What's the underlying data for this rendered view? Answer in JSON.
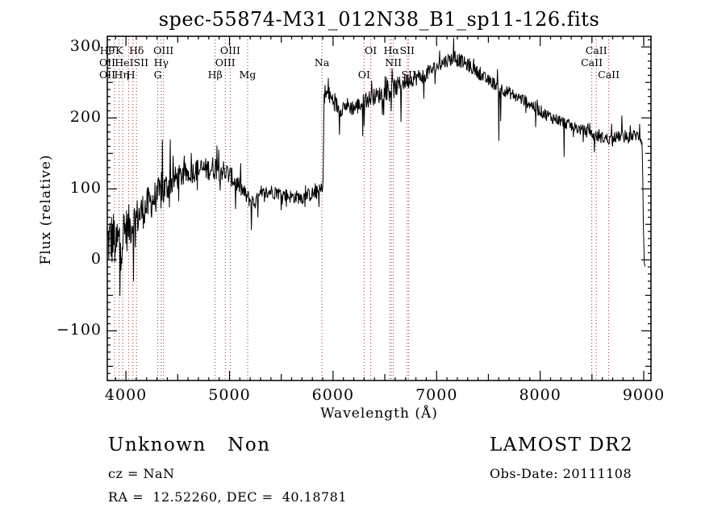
{
  "title": "spec-55874-M31_012N38_B1_sp11-126.fits",
  "footer": {
    "class_label": "Unknown   Non",
    "survey": "LAMOST DR2",
    "cz": "cz = NaN",
    "obs_date": "Obs-Date: 20111108",
    "radec": "RA =  12.52260, DEC =  40.18781"
  },
  "colors": {
    "background": "#ffffff",
    "spectrum": "#000000",
    "frame": "#000000",
    "marker_line": "#9b3028",
    "text": "#000000"
  },
  "chart_data": {
    "type": "line",
    "title": "spec-55874-M31_012N38_B1_sp11-126.fits",
    "xlabel": "Wavelength (Å)",
    "ylabel": "Flux (relative)",
    "xlim": [
      3820,
      9070
    ],
    "ylim": [
      -170,
      315
    ],
    "grid": false,
    "x_ticks_labeled": [
      4000,
      5000,
      6000,
      7000,
      8000,
      9000
    ],
    "x_minor_step": 100,
    "x_medium_step": 500,
    "y_ticks_labeled": [
      -100,
      0,
      100,
      200,
      300
    ],
    "y_minor_step": 10,
    "y_medium_step": 50,
    "marker_wavelengths": [
      3889,
      3934,
      3969,
      4026,
      4068,
      4102,
      4308,
      4340,
      4363,
      4861,
      4959,
      5007,
      5175,
      5893,
      6300,
      6364,
      6548,
      6563,
      6583,
      6716,
      6731,
      8498,
      8542,
      8662
    ],
    "spectral_lines": [
      {
        "label": "Hθ",
        "wavelength": 3798,
        "row": 1
      },
      {
        "label": "K",
        "wavelength": 3934,
        "row": 1
      },
      {
        "label": "Hδ",
        "wavelength": 4102,
        "row": 1
      },
      {
        "label": "OIII",
        "wavelength": 4363,
        "row": 1
      },
      {
        "label": "OIII",
        "wavelength": 5007,
        "row": 1
      },
      {
        "label": "OI",
        "wavelength": 6364,
        "row": 1
      },
      {
        "label": "Hα",
        "wavelength": 6563,
        "row": 1
      },
      {
        "label": "SII",
        "wavelength": 6716,
        "row": 1
      },
      {
        "label": "CaII",
        "wavelength": 8542,
        "row": 1
      },
      {
        "label": "OII",
        "wavelength": 3727,
        "row": 2
      },
      {
        "label": "HeI",
        "wavelength": 3889,
        "row": 2
      },
      {
        "label": "SII",
        "wavelength": 4068,
        "row": 2
      },
      {
        "label": "Hγ",
        "wavelength": 4340,
        "row": 2
      },
      {
        "label": "OIII",
        "wavelength": 4959,
        "row": 2
      },
      {
        "label": "Na",
        "wavelength": 5893,
        "row": 2
      },
      {
        "label": "NII",
        "wavelength": 6583,
        "row": 2
      },
      {
        "label": "CaII",
        "wavelength": 8498,
        "row": 2
      },
      {
        "label": "OII",
        "wavelength": 3727,
        "row": 3
      },
      {
        "label": "Hη",
        "wavelength": 3835,
        "row": 3
      },
      {
        "label": "H",
        "wavelength": 3969,
        "row": 3
      },
      {
        "label": "G",
        "wavelength": 4308,
        "row": 3
      },
      {
        "label": "Hβ",
        "wavelength": 4861,
        "row": 3
      },
      {
        "label": "Mg",
        "wavelength": 5175,
        "row": 3
      },
      {
        "label": "OI",
        "wavelength": 6300,
        "row": 3
      },
      {
        "label": "SII",
        "wavelength": 6731,
        "row": 3
      },
      {
        "label": "CaII",
        "wavelength": 8662,
        "row": 3
      }
    ],
    "series": [
      {
        "name": "spectrum",
        "step": 4.5,
        "seed": 12345,
        "envelope": [
          [
            3820,
            25,
            70
          ],
          [
            3870,
            30,
            78
          ],
          [
            3920,
            22,
            80
          ],
          [
            3960,
            35,
            75
          ],
          [
            4000,
            42,
            60
          ],
          [
            4060,
            52,
            55
          ],
          [
            4120,
            62,
            50
          ],
          [
            4180,
            72,
            48
          ],
          [
            4240,
            82,
            46
          ],
          [
            4300,
            90,
            45
          ],
          [
            4360,
            96,
            48
          ],
          [
            4420,
            108,
            38
          ],
          [
            4500,
            116,
            32
          ],
          [
            4600,
            122,
            30
          ],
          [
            4700,
            127,
            30
          ],
          [
            4800,
            128,
            30
          ],
          [
            4880,
            131,
            34
          ],
          [
            4950,
            125,
            28
          ],
          [
            5010,
            118,
            26
          ],
          [
            5090,
            105,
            24
          ],
          [
            5170,
            88,
            22
          ],
          [
            5240,
            80,
            20
          ],
          [
            5320,
            92,
            20
          ],
          [
            5400,
            97,
            18
          ],
          [
            5500,
            93,
            18
          ],
          [
            5600,
            89,
            18
          ],
          [
            5700,
            88,
            18
          ],
          [
            5800,
            93,
            18
          ],
          [
            5870,
            96,
            20
          ],
          [
            5902,
            98,
            22
          ],
          [
            5914,
            235,
            26
          ],
          [
            5950,
            232,
            28
          ],
          [
            6000,
            225,
            24
          ],
          [
            6060,
            212,
            22
          ],
          [
            6120,
            218,
            22
          ],
          [
            6200,
            214,
            22
          ],
          [
            6280,
            220,
            24
          ],
          [
            6360,
            228,
            22
          ],
          [
            6440,
            232,
            22
          ],
          [
            6520,
            238,
            24
          ],
          [
            6600,
            242,
            26
          ],
          [
            6680,
            250,
            22
          ],
          [
            6760,
            255,
            20
          ],
          [
            6840,
            258,
            22
          ],
          [
            6920,
            264,
            20
          ],
          [
            7000,
            272,
            18
          ],
          [
            7080,
            280,
            18
          ],
          [
            7160,
            284,
            18
          ],
          [
            7240,
            280,
            18
          ],
          [
            7320,
            272,
            16
          ],
          [
            7400,
            264,
            16
          ],
          [
            7480,
            254,
            16
          ],
          [
            7560,
            248,
            16
          ],
          [
            7640,
            240,
            16
          ],
          [
            7720,
            234,
            16
          ],
          [
            7800,
            228,
            16
          ],
          [
            7880,
            222,
            16
          ],
          [
            7960,
            214,
            16
          ],
          [
            8040,
            206,
            16
          ],
          [
            8120,
            200,
            16
          ],
          [
            8200,
            196,
            15
          ],
          [
            8280,
            190,
            15
          ],
          [
            8360,
            185,
            15
          ],
          [
            8440,
            181,
            15
          ],
          [
            8520,
            175,
            15
          ],
          [
            8600,
            172,
            15
          ],
          [
            8680,
            170,
            15
          ],
          [
            8760,
            174,
            15
          ],
          [
            8840,
            172,
            15
          ],
          [
            8920,
            176,
            16
          ],
          [
            8970,
            172,
            16
          ],
          [
            8986,
            165,
            14
          ],
          [
            8996,
            60,
            18
          ],
          [
            9004,
            -6,
            6
          ],
          [
            9018,
            -9,
            4
          ]
        ],
        "spikes": [
          [
            3900,
            -55
          ],
          [
            3944,
            -70
          ],
          [
            4075,
            -55
          ],
          [
            4350,
            62
          ],
          [
            4428,
            55
          ],
          [
            4878,
            52
          ],
          [
            5060,
            -36
          ],
          [
            5210,
            -42
          ],
          [
            6060,
            -30
          ],
          [
            6286,
            -40
          ],
          [
            6560,
            -22
          ],
          [
            6656,
            -48
          ],
          [
            6876,
            -44
          ],
          [
            7164,
            30
          ],
          [
            7600,
            -80
          ],
          [
            7618,
            -42
          ],
          [
            7958,
            -30
          ],
          [
            8230,
            -54
          ],
          [
            8522,
            -26
          ],
          [
            8790,
            26
          ],
          [
            8958,
            24
          ]
        ]
      }
    ]
  }
}
